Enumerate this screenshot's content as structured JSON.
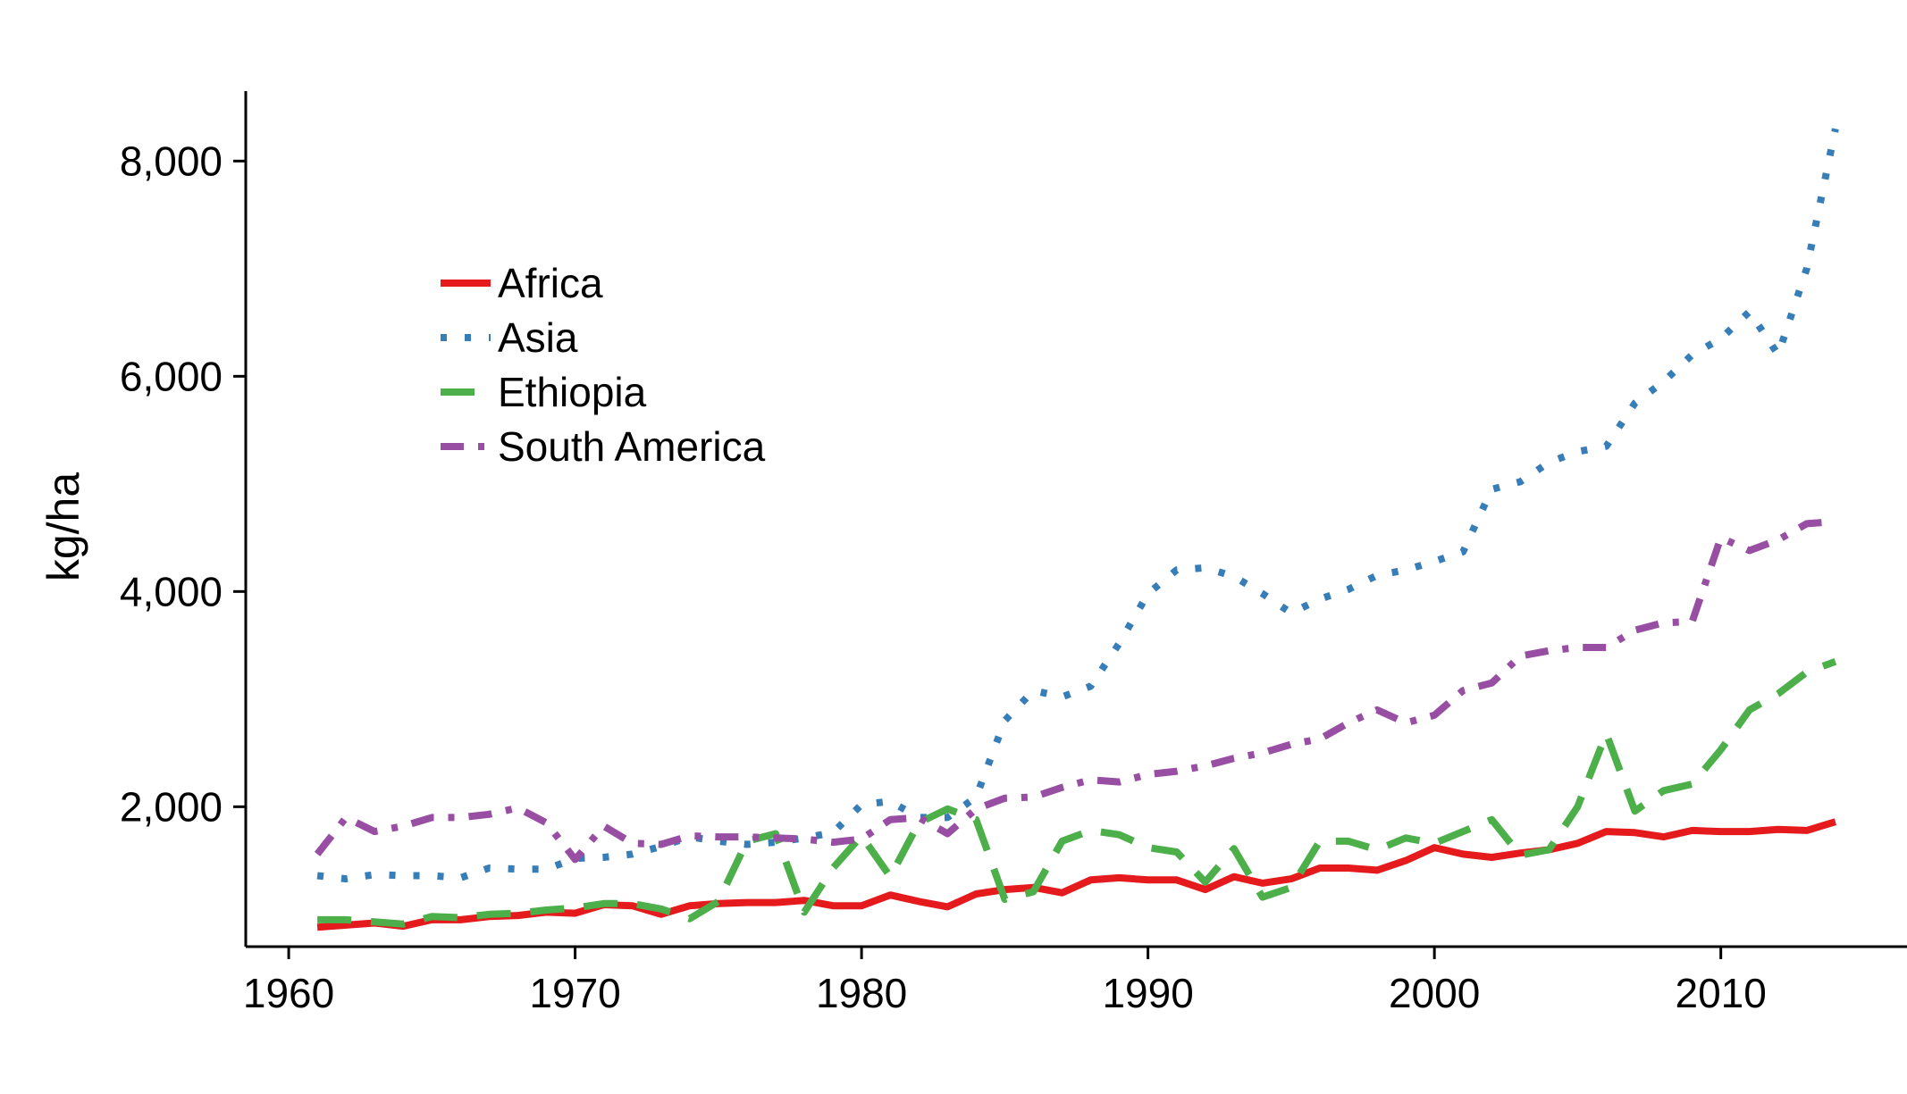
{
  "chart_data": {
    "type": "line",
    "title": "",
    "xlabel": "",
    "ylabel": "kg/ha",
    "xlim": [
      1958.5,
      2016.5
    ],
    "ylim": [
      700,
      8650
    ],
    "x_ticks": [
      1960,
      1970,
      1980,
      1990,
      2000,
      2010
    ],
    "y_ticks": [
      2000,
      4000,
      6000,
      8000
    ],
    "y_tick_labels": [
      "2,000",
      "4,000",
      "6,000",
      "8,000"
    ],
    "grid": false,
    "legend_position": "top-left",
    "x": [
      1961,
      1962,
      1963,
      1964,
      1965,
      1966,
      1967,
      1968,
      1969,
      1970,
      1971,
      1972,
      1973,
      1974,
      1975,
      1976,
      1977,
      1978,
      1979,
      1980,
      1981,
      1982,
      1983,
      1984,
      1985,
      1986,
      1987,
      1988,
      1989,
      1990,
      1991,
      1992,
      1993,
      1994,
      1995,
      1996,
      1997,
      1998,
      1999,
      2000,
      2001,
      2002,
      2003,
      2004,
      2005,
      2006,
      2007,
      2008,
      2009,
      2010,
      2011,
      2012,
      2013,
      2014
    ],
    "series": [
      {
        "name": "Africa",
        "color": "#e41a1c",
        "dash": "solid",
        "values": [
          880,
          900,
          920,
          890,
          950,
          950,
          980,
          990,
          1020,
          1010,
          1090,
          1080,
          1000,
          1080,
          1100,
          1110,
          1110,
          1130,
          1080,
          1080,
          1180,
          1120,
          1070,
          1190,
          1230,
          1250,
          1200,
          1320,
          1340,
          1320,
          1320,
          1230,
          1350,
          1290,
          1330,
          1430,
          1430,
          1410,
          1500,
          1620,
          1560,
          1530,
          1570,
          1600,
          1660,
          1770,
          1760,
          1720,
          1780,
          1770,
          1770,
          1790,
          1780,
          1860
        ]
      },
      {
        "name": "Asia",
        "color": "#377eb8",
        "dash": "dotted",
        "values": [
          1360,
          1330,
          1370,
          1360,
          1360,
          1340,
          1430,
          1420,
          1420,
          1520,
          1530,
          1560,
          1630,
          1720,
          1680,
          1650,
          1670,
          1710,
          1760,
          2020,
          2050,
          1900,
          1900,
          2090,
          2800,
          3080,
          3020,
          3120,
          3520,
          3980,
          4200,
          4220,
          4140,
          3980,
          3800,
          3930,
          4020,
          4150,
          4200,
          4280,
          4370,
          4950,
          5020,
          5200,
          5300,
          5350,
          5750,
          5950,
          6200,
          6350,
          6600,
          6200,
          7000,
          8300
        ]
      },
      {
        "name": "Ethiopia",
        "color": "#4daf4a",
        "dash": "dashed",
        "values": [
          950,
          950,
          930,
          910,
          980,
          970,
          1000,
          1010,
          1040,
          1060,
          1100,
          1100,
          1050,
          960,
          1120,
          1680,
          1750,
          1020,
          1430,
          1730,
          1350,
          1850,
          1980,
          1880,
          1140,
          1210,
          1680,
          1780,
          1740,
          1620,
          1580,
          1300,
          1610,
          1160,
          1250,
          1680,
          1680,
          1600,
          1710,
          1660,
          1770,
          1880,
          1550,
          1600,
          2000,
          2680,
          1960,
          2150,
          2210,
          2530,
          2900,
          3050,
          3250,
          3350
        ]
      },
      {
        "name": "South America",
        "color": "#984ea3",
        "dash": "dashdot",
        "values": [
          1560,
          1900,
          1770,
          1820,
          1900,
          1900,
          1930,
          1990,
          1850,
          1510,
          1820,
          1660,
          1650,
          1730,
          1720,
          1720,
          1710,
          1700,
          1670,
          1700,
          1880,
          1900,
          1750,
          1980,
          2080,
          2090,
          2180,
          2250,
          2230,
          2300,
          2330,
          2380,
          2450,
          2500,
          2580,
          2630,
          2780,
          2900,
          2780,
          2850,
          3080,
          3150,
          3400,
          3450,
          3480,
          3480,
          3640,
          3710,
          3720,
          4500,
          4380,
          4480,
          4630,
          4650
        ]
      }
    ]
  }
}
